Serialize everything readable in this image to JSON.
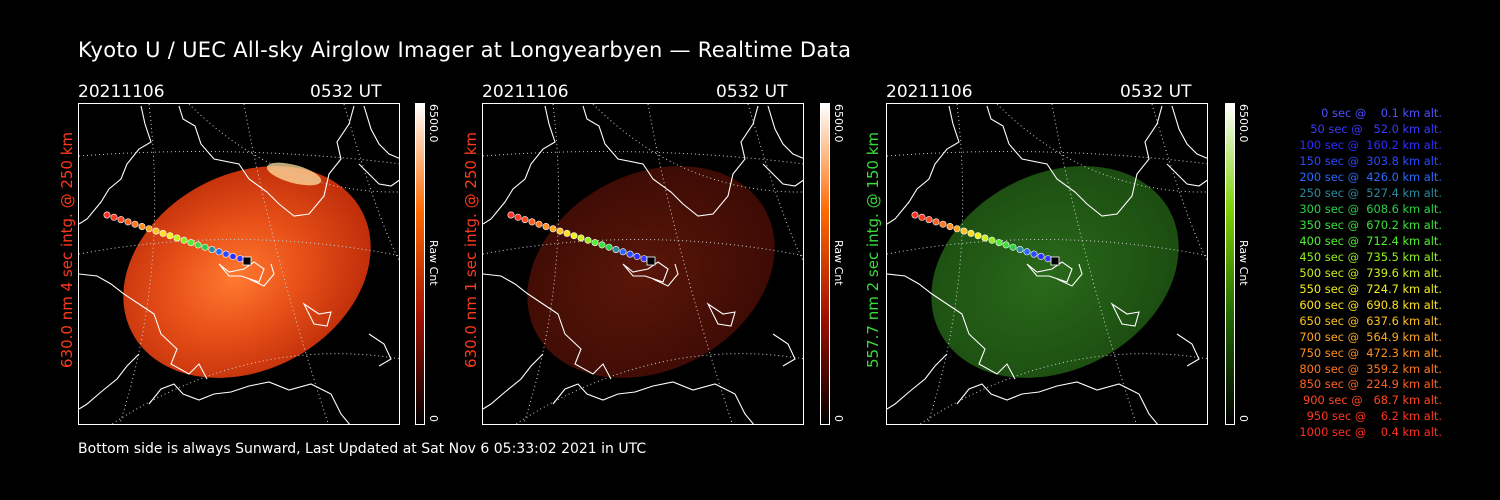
{
  "title": "Kyoto U / UEC All-sky Airglow Imager at Longyearbyen — Realtime Data",
  "footer": "Bottom side is always Sunward, Last Updated at Sat Nov  6 05:33:02 2021 in UTC",
  "panels": [
    {
      "date": "20211106",
      "time": "0532 UT",
      "side_label": "630.0 nm 4 sec intg. @ 250 km",
      "side_color": "#ff3a1a",
      "cbar_max": "6500.0",
      "cbar_min": "0",
      "cbar_unit": "Raw Cnt",
      "cbar_colors": [
        "#ffffff",
        "#ff6a00",
        "#a01000",
        "#000000"
      ],
      "glow": "bright-red"
    },
    {
      "date": "20211106",
      "time": "0532 UT",
      "side_label": "630.0 nm 1 sec intg. @ 250 km",
      "side_color": "#ff3a1a",
      "cbar_max": "6500.0",
      "cbar_min": "0",
      "cbar_unit": "Raw Cnt",
      "cbar_colors": [
        "#ffffff",
        "#ff6a00",
        "#a01000",
        "#000000"
      ],
      "glow": "dim-red"
    },
    {
      "date": "20211106",
      "time": "0532 UT",
      "side_label": "557.7 nm 2 sec intg. @ 150 km",
      "side_color": "#3adc3a",
      "cbar_max": "6500.0",
      "cbar_min": "0",
      "cbar_unit": "Raw Cnt",
      "cbar_colors": [
        "#ffffff",
        "#7cd000",
        "#226600",
        "#000000"
      ],
      "glow": "dim-green"
    }
  ],
  "legend": [
    {
      "text": "   0 sec @    0.1 km alt.",
      "color": "#5050ff"
    },
    {
      "text": "  50 sec @   52.0 km alt.",
      "color": "#3a3aff"
    },
    {
      "text": " 100 sec @  160.2 km alt.",
      "color": "#2e2eff"
    },
    {
      "text": " 150 sec @  303.8 km alt.",
      "color": "#2a4aff"
    },
    {
      "text": " 200 sec @  426.0 km alt.",
      "color": "#2a6aff"
    },
    {
      "text": " 250 sec @  527.4 km alt.",
      "color": "#2a8aa0"
    },
    {
      "text": " 300 sec @  608.6 km alt.",
      "color": "#2ad04a"
    },
    {
      "text": " 350 sec @  670.2 km alt.",
      "color": "#3ae03a"
    },
    {
      "text": " 400 sec @  712.4 km alt.",
      "color": "#50f030"
    },
    {
      "text": " 450 sec @  735.5 km alt.",
      "color": "#90f020"
    },
    {
      "text": " 500 sec @  739.6 km alt.",
      "color": "#c8f020"
    },
    {
      "text": " 550 sec @  724.7 km alt.",
      "color": "#f0f020"
    },
    {
      "text": " 600 sec @  690.8 km alt.",
      "color": "#ffe020"
    },
    {
      "text": " 650 sec @  637.6 km alt.",
      "color": "#ffc020"
    },
    {
      "text": " 700 sec @  564.9 km alt.",
      "color": "#ffa820"
    },
    {
      "text": " 750 sec @  472.3 km alt.",
      "color": "#ff9020"
    },
    {
      "text": " 800 sec @  359.2 km alt.",
      "color": "#ff7820"
    },
    {
      "text": " 850 sec @  224.9 km alt.",
      "color": "#ff6020"
    },
    {
      "text": " 900 sec @   68.7 km alt.",
      "color": "#ff4820"
    },
    {
      "text": " 950 sec @    6.2 km alt.",
      "color": "#ff3820"
    },
    {
      "text": "1000 sec @    0.4 km alt.",
      "color": "#ff3020"
    }
  ]
}
